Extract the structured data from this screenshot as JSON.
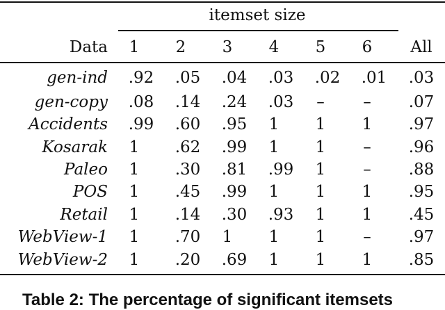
{
  "table": {
    "group_header": "itemset size",
    "row_header": "Data",
    "columns": [
      "1",
      "2",
      "3",
      "4",
      "5",
      "6",
      "All"
    ],
    "rows": [
      {
        "name": "gen-ind",
        "values": [
          ".92",
          ".05",
          ".04",
          ".03",
          ".02",
          ".01",
          ".03"
        ]
      },
      {
        "name": "gen-copy",
        "values": [
          ".08",
          ".14",
          ".24",
          ".03",
          "–",
          "–",
          ".07"
        ]
      },
      {
        "name": "Accidents",
        "values": [
          ".99",
          ".60",
          ".95",
          "1",
          "1",
          "1",
          ".97"
        ]
      },
      {
        "name": "Kosarak",
        "values": [
          "1",
          ".62",
          ".99",
          "1",
          "1",
          "–",
          ".96"
        ]
      },
      {
        "name": "Paleo",
        "values": [
          "1",
          ".30",
          ".81",
          ".99",
          "1",
          "–",
          ".88"
        ]
      },
      {
        "name": "POS",
        "values": [
          "1",
          ".45",
          ".99",
          "1",
          "1",
          "1",
          ".95"
        ]
      },
      {
        "name": "Retail",
        "values": [
          "1",
          ".14",
          ".30",
          ".93",
          "1",
          "1",
          ".45"
        ]
      },
      {
        "name": "WebView-1",
        "values": [
          "1",
          ".70",
          "1",
          "1",
          "1",
          "–",
          ".97"
        ]
      },
      {
        "name": "WebView-2",
        "values": [
          "1",
          ".20",
          ".69",
          "1",
          "1",
          "1",
          ".85"
        ]
      }
    ]
  },
  "caption": "Table 2: The percentage of significant itemsets"
}
